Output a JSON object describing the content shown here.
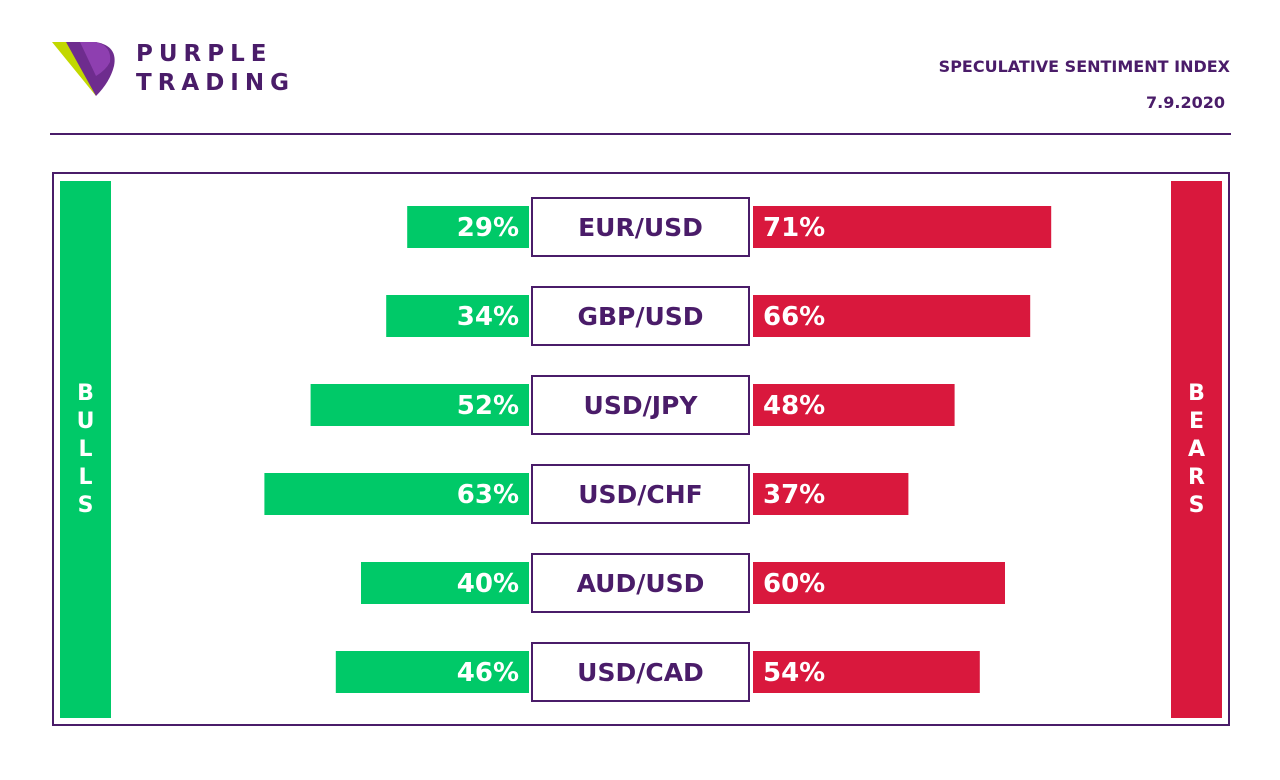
{
  "brand": {
    "line1": "PURPLE",
    "line2": "TRADING"
  },
  "header": {
    "title": "SPECULATIVE SENTIMENT INDEX",
    "date": "7.9.2020"
  },
  "sides": {
    "bulls": "BULLS",
    "bears": "BEARS"
  },
  "colors": {
    "purple": "#4a1c69",
    "bull": "#00c968",
    "bear": "#d9183d"
  },
  "chart_data": {
    "type": "bar",
    "categories": [
      "EUR/USD",
      "GBP/USD",
      "USD/JPY",
      "USD/CHF",
      "AUD/USD",
      "USD/CAD"
    ],
    "series": [
      {
        "name": "BULLS",
        "values": [
          29,
          34,
          52,
          63,
          40,
          46
        ]
      },
      {
        "name": "BEARS",
        "values": [
          71,
          66,
          48,
          37,
          60,
          54
        ]
      }
    ],
    "labels": {
      "bulls": [
        "29%",
        "34%",
        "52%",
        "63%",
        "40%",
        "46%"
      ],
      "bears": [
        "71%",
        "66%",
        "48%",
        "37%",
        "60%",
        "54%"
      ]
    },
    "unit": "%",
    "legend": "none",
    "grid": false
  }
}
